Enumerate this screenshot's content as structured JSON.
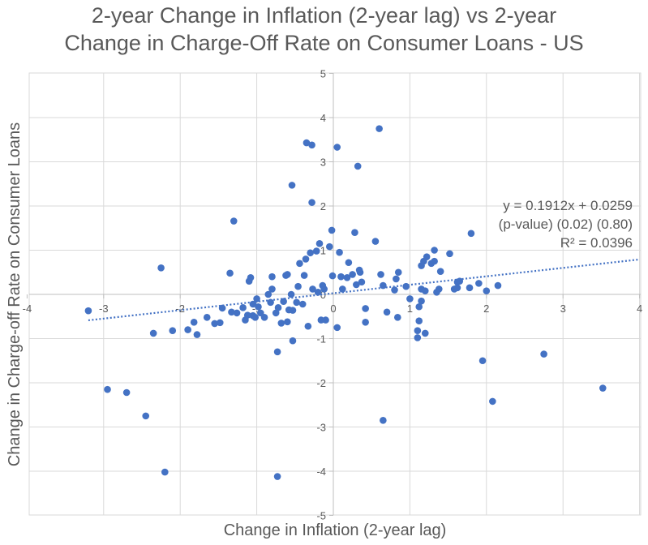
{
  "chart_data": {
    "type": "scatter",
    "title_line1": "2-year Change in Inflation (2-year lag) vs 2-year",
    "title_line2": "Change in Charge-Off Rate on Consumer Loans - US",
    "xlabel": "Change in Inflation (2-year lag)",
    "ylabel": "Change in Charge-off Rate on Consumer Loans",
    "xlim": [
      -4,
      4
    ],
    "ylim": [
      -5,
      5
    ],
    "x_ticks": [
      -4,
      -3,
      -2,
      -1,
      0,
      1,
      2,
      3,
      4
    ],
    "y_ticks": [
      -5,
      -4,
      -3,
      -2,
      -1,
      0,
      1,
      2,
      3,
      4,
      5
    ],
    "grid": true,
    "point_color": "#4472C4",
    "trendline_color": "#4472C4",
    "trendline": {
      "slope": 0.1912,
      "intercept": 0.0259
    },
    "annotation": [
      "y = 0.1912x + 0.0259",
      "(p-value) (0.02) (0.80)",
      "R² = 0.0396"
    ],
    "points": [
      [
        -3.2,
        -0.37
      ],
      [
        -2.95,
        -2.15
      ],
      [
        -2.7,
        -2.22
      ],
      [
        -2.45,
        -2.75
      ],
      [
        -2.35,
        -0.88
      ],
      [
        -2.25,
        0.6
      ],
      [
        -2.2,
        -4.02
      ],
      [
        -2.1,
        -0.82
      ],
      [
        -1.9,
        -0.8
      ],
      [
        -1.82,
        -0.63
      ],
      [
        -1.78,
        -0.91
      ],
      [
        -1.65,
        -0.52
      ],
      [
        -1.55,
        -0.66
      ],
      [
        -1.48,
        -0.64
      ],
      [
        -1.45,
        -0.31
      ],
      [
        -1.35,
        0.48
      ],
      [
        -1.33,
        -0.4
      ],
      [
        -1.3,
        1.66
      ],
      [
        -1.26,
        -0.42
      ],
      [
        -1.18,
        -0.3
      ],
      [
        -1.15,
        -0.58
      ],
      [
        -1.12,
        -0.47
      ],
      [
        -1.1,
        0.3
      ],
      [
        -1.08,
        0.38
      ],
      [
        -1.05,
        -0.22
      ],
      [
        -1.05,
        -0.48
      ],
      [
        -1.02,
        -0.52
      ],
      [
        -1.0,
        -0.1
      ],
      [
        -0.98,
        -0.28
      ],
      [
        -0.95,
        -0.42
      ],
      [
        -0.9,
        -0.52
      ],
      [
        -0.85,
        0.0
      ],
      [
        -0.82,
        -0.18
      ],
      [
        -0.8,
        0.12
      ],
      [
        -0.8,
        0.4
      ],
      [
        -0.75,
        -0.42
      ],
      [
        -0.73,
        -1.3
      ],
      [
        -0.73,
        -4.12
      ],
      [
        -0.72,
        -0.3
      ],
      [
        -0.68,
        -0.65
      ],
      [
        -0.65,
        -0.16
      ],
      [
        -0.62,
        0.43
      ],
      [
        -0.6,
        0.45
      ],
      [
        -0.6,
        -0.62
      ],
      [
        -0.58,
        -0.35
      ],
      [
        -0.55,
        0.0
      ],
      [
        -0.54,
        2.47
      ],
      [
        -0.53,
        -0.36
      ],
      [
        -0.53,
        -1.05
      ],
      [
        -0.48,
        -0.18
      ],
      [
        -0.46,
        0.18
      ],
      [
        -0.44,
        0.7
      ],
      [
        -0.4,
        -0.22
      ],
      [
        -0.38,
        0.43
      ],
      [
        -0.36,
        0.8
      ],
      [
        -0.35,
        3.43
      ],
      [
        -0.33,
        -0.72
      ],
      [
        -0.3,
        0.94
      ],
      [
        -0.28,
        3.38
      ],
      [
        -0.28,
        2.08
      ],
      [
        -0.27,
        0.12
      ],
      [
        -0.22,
        0.98
      ],
      [
        -0.2,
        0.05
      ],
      [
        -0.18,
        1.15
      ],
      [
        -0.16,
        -0.58
      ],
      [
        -0.14,
        0.2
      ],
      [
        -0.12,
        0.12
      ],
      [
        -0.1,
        -0.58
      ],
      [
        -0.05,
        1.08
      ],
      [
        -0.02,
        1.45
      ],
      [
        -0.01,
        0.42
      ],
      [
        0.05,
        -0.75
      ],
      [
        0.05,
        3.33
      ],
      [
        0.08,
        0.95
      ],
      [
        0.1,
        0.4
      ],
      [
        0.12,
        0.12
      ],
      [
        0.18,
        0.38
      ],
      [
        0.2,
        0.72
      ],
      [
        0.25,
        0.45
      ],
      [
        0.28,
        1.4
      ],
      [
        0.3,
        0.22
      ],
      [
        0.32,
        2.9
      ],
      [
        0.34,
        0.55
      ],
      [
        0.35,
        0.5
      ],
      [
        0.37,
        0.28
      ],
      [
        0.42,
        -0.63
      ],
      [
        0.42,
        -0.32
      ],
      [
        0.55,
        1.2
      ],
      [
        0.6,
        3.75
      ],
      [
        0.62,
        0.45
      ],
      [
        0.65,
        -2.85
      ],
      [
        0.65,
        0.2
      ],
      [
        0.7,
        -0.4
      ],
      [
        0.8,
        0.1
      ],
      [
        0.82,
        0.35
      ],
      [
        0.84,
        -0.52
      ],
      [
        0.85,
        0.5
      ],
      [
        0.95,
        0.18
      ],
      [
        1.0,
        -0.1
      ],
      [
        1.1,
        -0.98
      ],
      [
        1.1,
        -0.82
      ],
      [
        1.12,
        -0.6
      ],
      [
        1.12,
        -0.28
      ],
      [
        1.15,
        -0.15
      ],
      [
        1.15,
        0.12
      ],
      [
        1.15,
        0.65
      ],
      [
        1.18,
        0.75
      ],
      [
        1.2,
        0.08
      ],
      [
        1.2,
        -0.88
      ],
      [
        1.22,
        0.85
      ],
      [
        1.28,
        0.7
      ],
      [
        1.32,
        0.75
      ],
      [
        1.32,
        1.0
      ],
      [
        1.35,
        0.05
      ],
      [
        1.38,
        0.12
      ],
      [
        1.4,
        0.52
      ],
      [
        1.52,
        0.92
      ],
      [
        1.58,
        0.12
      ],
      [
        1.62,
        0.15
      ],
      [
        1.62,
        0.28
      ],
      [
        1.65,
        0.3
      ],
      [
        1.78,
        0.15
      ],
      [
        1.8,
        1.38
      ],
      [
        1.9,
        0.25
      ],
      [
        1.95,
        -1.5
      ],
      [
        2.0,
        0.08
      ],
      [
        2.08,
        -2.42
      ],
      [
        2.15,
        0.2
      ],
      [
        2.75,
        -1.35
      ],
      [
        3.52,
        -2.12
      ]
    ]
  }
}
